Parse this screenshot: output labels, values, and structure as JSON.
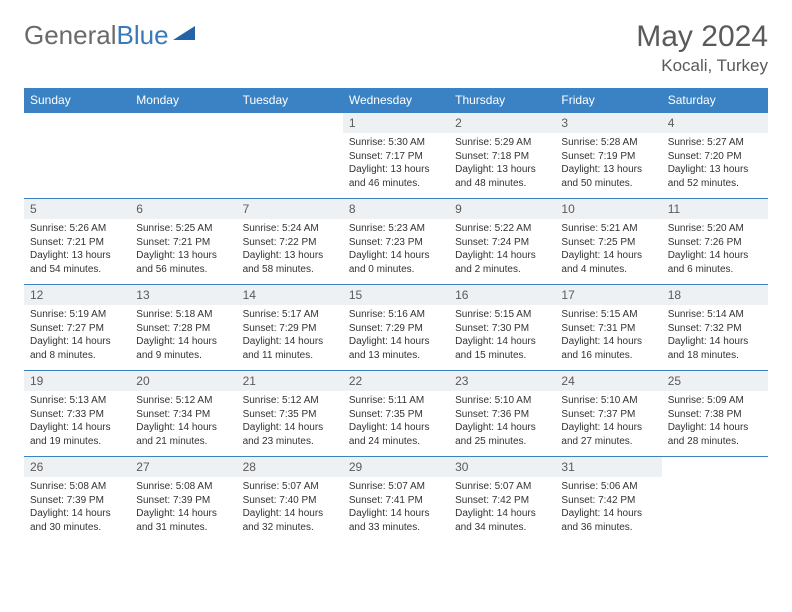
{
  "logo": {
    "word1": "General",
    "word2": "Blue"
  },
  "title": "May 2024",
  "location": "Kocali, Turkey",
  "colors": {
    "header_bg": "#3a82c4",
    "header_text": "#ffffff",
    "daynum_bg": "#eef1f4",
    "border": "#3a82c4",
    "text": "#333333",
    "title_text": "#5a5a5a",
    "logo_grey": "#6a6a6a",
    "logo_blue": "#3a7ab8"
  },
  "weekdays": [
    "Sunday",
    "Monday",
    "Tuesday",
    "Wednesday",
    "Thursday",
    "Friday",
    "Saturday"
  ],
  "weeks": [
    [
      null,
      null,
      null,
      {
        "n": "1",
        "sr": "5:30 AM",
        "ss": "7:17 PM",
        "dl": "13 hours and 46 minutes."
      },
      {
        "n": "2",
        "sr": "5:29 AM",
        "ss": "7:18 PM",
        "dl": "13 hours and 48 minutes."
      },
      {
        "n": "3",
        "sr": "5:28 AM",
        "ss": "7:19 PM",
        "dl": "13 hours and 50 minutes."
      },
      {
        "n": "4",
        "sr": "5:27 AM",
        "ss": "7:20 PM",
        "dl": "13 hours and 52 minutes."
      }
    ],
    [
      {
        "n": "5",
        "sr": "5:26 AM",
        "ss": "7:21 PM",
        "dl": "13 hours and 54 minutes."
      },
      {
        "n": "6",
        "sr": "5:25 AM",
        "ss": "7:21 PM",
        "dl": "13 hours and 56 minutes."
      },
      {
        "n": "7",
        "sr": "5:24 AM",
        "ss": "7:22 PM",
        "dl": "13 hours and 58 minutes."
      },
      {
        "n": "8",
        "sr": "5:23 AM",
        "ss": "7:23 PM",
        "dl": "14 hours and 0 minutes."
      },
      {
        "n": "9",
        "sr": "5:22 AM",
        "ss": "7:24 PM",
        "dl": "14 hours and 2 minutes."
      },
      {
        "n": "10",
        "sr": "5:21 AM",
        "ss": "7:25 PM",
        "dl": "14 hours and 4 minutes."
      },
      {
        "n": "11",
        "sr": "5:20 AM",
        "ss": "7:26 PM",
        "dl": "14 hours and 6 minutes."
      }
    ],
    [
      {
        "n": "12",
        "sr": "5:19 AM",
        "ss": "7:27 PM",
        "dl": "14 hours and 8 minutes."
      },
      {
        "n": "13",
        "sr": "5:18 AM",
        "ss": "7:28 PM",
        "dl": "14 hours and 9 minutes."
      },
      {
        "n": "14",
        "sr": "5:17 AM",
        "ss": "7:29 PM",
        "dl": "14 hours and 11 minutes."
      },
      {
        "n": "15",
        "sr": "5:16 AM",
        "ss": "7:29 PM",
        "dl": "14 hours and 13 minutes."
      },
      {
        "n": "16",
        "sr": "5:15 AM",
        "ss": "7:30 PM",
        "dl": "14 hours and 15 minutes."
      },
      {
        "n": "17",
        "sr": "5:15 AM",
        "ss": "7:31 PM",
        "dl": "14 hours and 16 minutes."
      },
      {
        "n": "18",
        "sr": "5:14 AM",
        "ss": "7:32 PM",
        "dl": "14 hours and 18 minutes."
      }
    ],
    [
      {
        "n": "19",
        "sr": "5:13 AM",
        "ss": "7:33 PM",
        "dl": "14 hours and 19 minutes."
      },
      {
        "n": "20",
        "sr": "5:12 AM",
        "ss": "7:34 PM",
        "dl": "14 hours and 21 minutes."
      },
      {
        "n": "21",
        "sr": "5:12 AM",
        "ss": "7:35 PM",
        "dl": "14 hours and 23 minutes."
      },
      {
        "n": "22",
        "sr": "5:11 AM",
        "ss": "7:35 PM",
        "dl": "14 hours and 24 minutes."
      },
      {
        "n": "23",
        "sr": "5:10 AM",
        "ss": "7:36 PM",
        "dl": "14 hours and 25 minutes."
      },
      {
        "n": "24",
        "sr": "5:10 AM",
        "ss": "7:37 PM",
        "dl": "14 hours and 27 minutes."
      },
      {
        "n": "25",
        "sr": "5:09 AM",
        "ss": "7:38 PM",
        "dl": "14 hours and 28 minutes."
      }
    ],
    [
      {
        "n": "26",
        "sr": "5:08 AM",
        "ss": "7:39 PM",
        "dl": "14 hours and 30 minutes."
      },
      {
        "n": "27",
        "sr": "5:08 AM",
        "ss": "7:39 PM",
        "dl": "14 hours and 31 minutes."
      },
      {
        "n": "28",
        "sr": "5:07 AM",
        "ss": "7:40 PM",
        "dl": "14 hours and 32 minutes."
      },
      {
        "n": "29",
        "sr": "5:07 AM",
        "ss": "7:41 PM",
        "dl": "14 hours and 33 minutes."
      },
      {
        "n": "30",
        "sr": "5:07 AM",
        "ss": "7:42 PM",
        "dl": "14 hours and 34 minutes."
      },
      {
        "n": "31",
        "sr": "5:06 AM",
        "ss": "7:42 PM",
        "dl": "14 hours and 36 minutes."
      },
      null
    ]
  ],
  "labels": {
    "sunrise": "Sunrise:",
    "sunset": "Sunset:",
    "daylight": "Daylight:"
  }
}
